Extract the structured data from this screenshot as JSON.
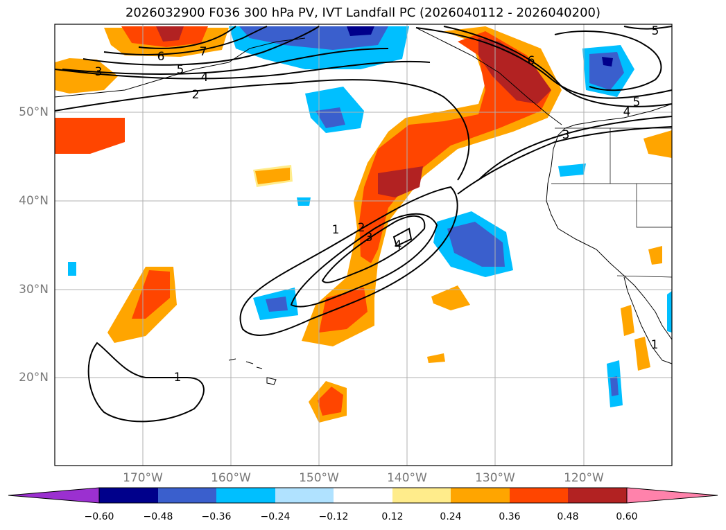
{
  "title": "2026032900 F036 300 hPa PV, IVT Landfall PC (2026040112 - 2026040200)",
  "lat_labels": [
    "50°N",
    "40°N",
    "30°N",
    "20°N"
  ],
  "lon_labels": [
    "170°W",
    "160°W",
    "150°W",
    "140°W",
    "130°W",
    "120°W"
  ],
  "contour_labels": [
    "7",
    "6",
    "5",
    "4",
    "3",
    "2",
    "1",
    "2",
    "3",
    "4",
    "1",
    "6",
    "5",
    "4",
    "3",
    "1",
    "5"
  ],
  "colorbar": {
    "ticks": [
      "−0.60",
      "−0.48",
      "−0.36",
      "−0.24",
      "−0.12",
      "0.12",
      "0.24",
      "0.36",
      "0.48",
      "0.60"
    ],
    "colors": [
      "#9b30d0",
      "#00008b",
      "#3a5fcd",
      "#00bfff",
      "#b0e2ff",
      "#ffffff",
      "#ffec8b",
      "#ffa500",
      "#ff4500",
      "#b22222",
      "#ff82ab"
    ]
  }
}
